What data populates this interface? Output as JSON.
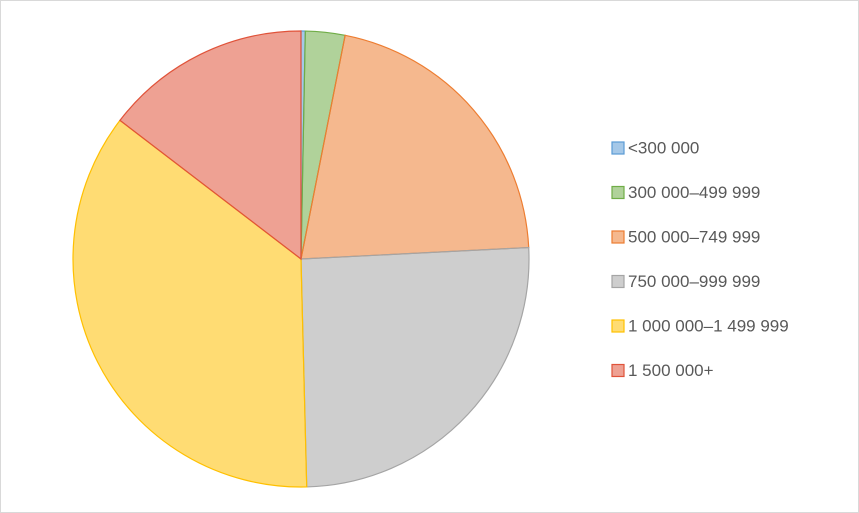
{
  "chart_data": {
    "type": "pie",
    "categories": [
      "<300 000",
      "300 000–499 999",
      "500 000–749 999",
      "750 000–999 999",
      "1 000 000–1 499 999",
      "1 500 000+"
    ],
    "values": [
      0.3,
      2.8,
      21.1,
      25.4,
      35.8,
      14.6
    ],
    "colors": [
      "#5b9bd5",
      "#70ad47",
      "#ed7d31",
      "#a5a5a5",
      "#ffc000",
      "#e0533a"
    ],
    "legend": "right"
  }
}
